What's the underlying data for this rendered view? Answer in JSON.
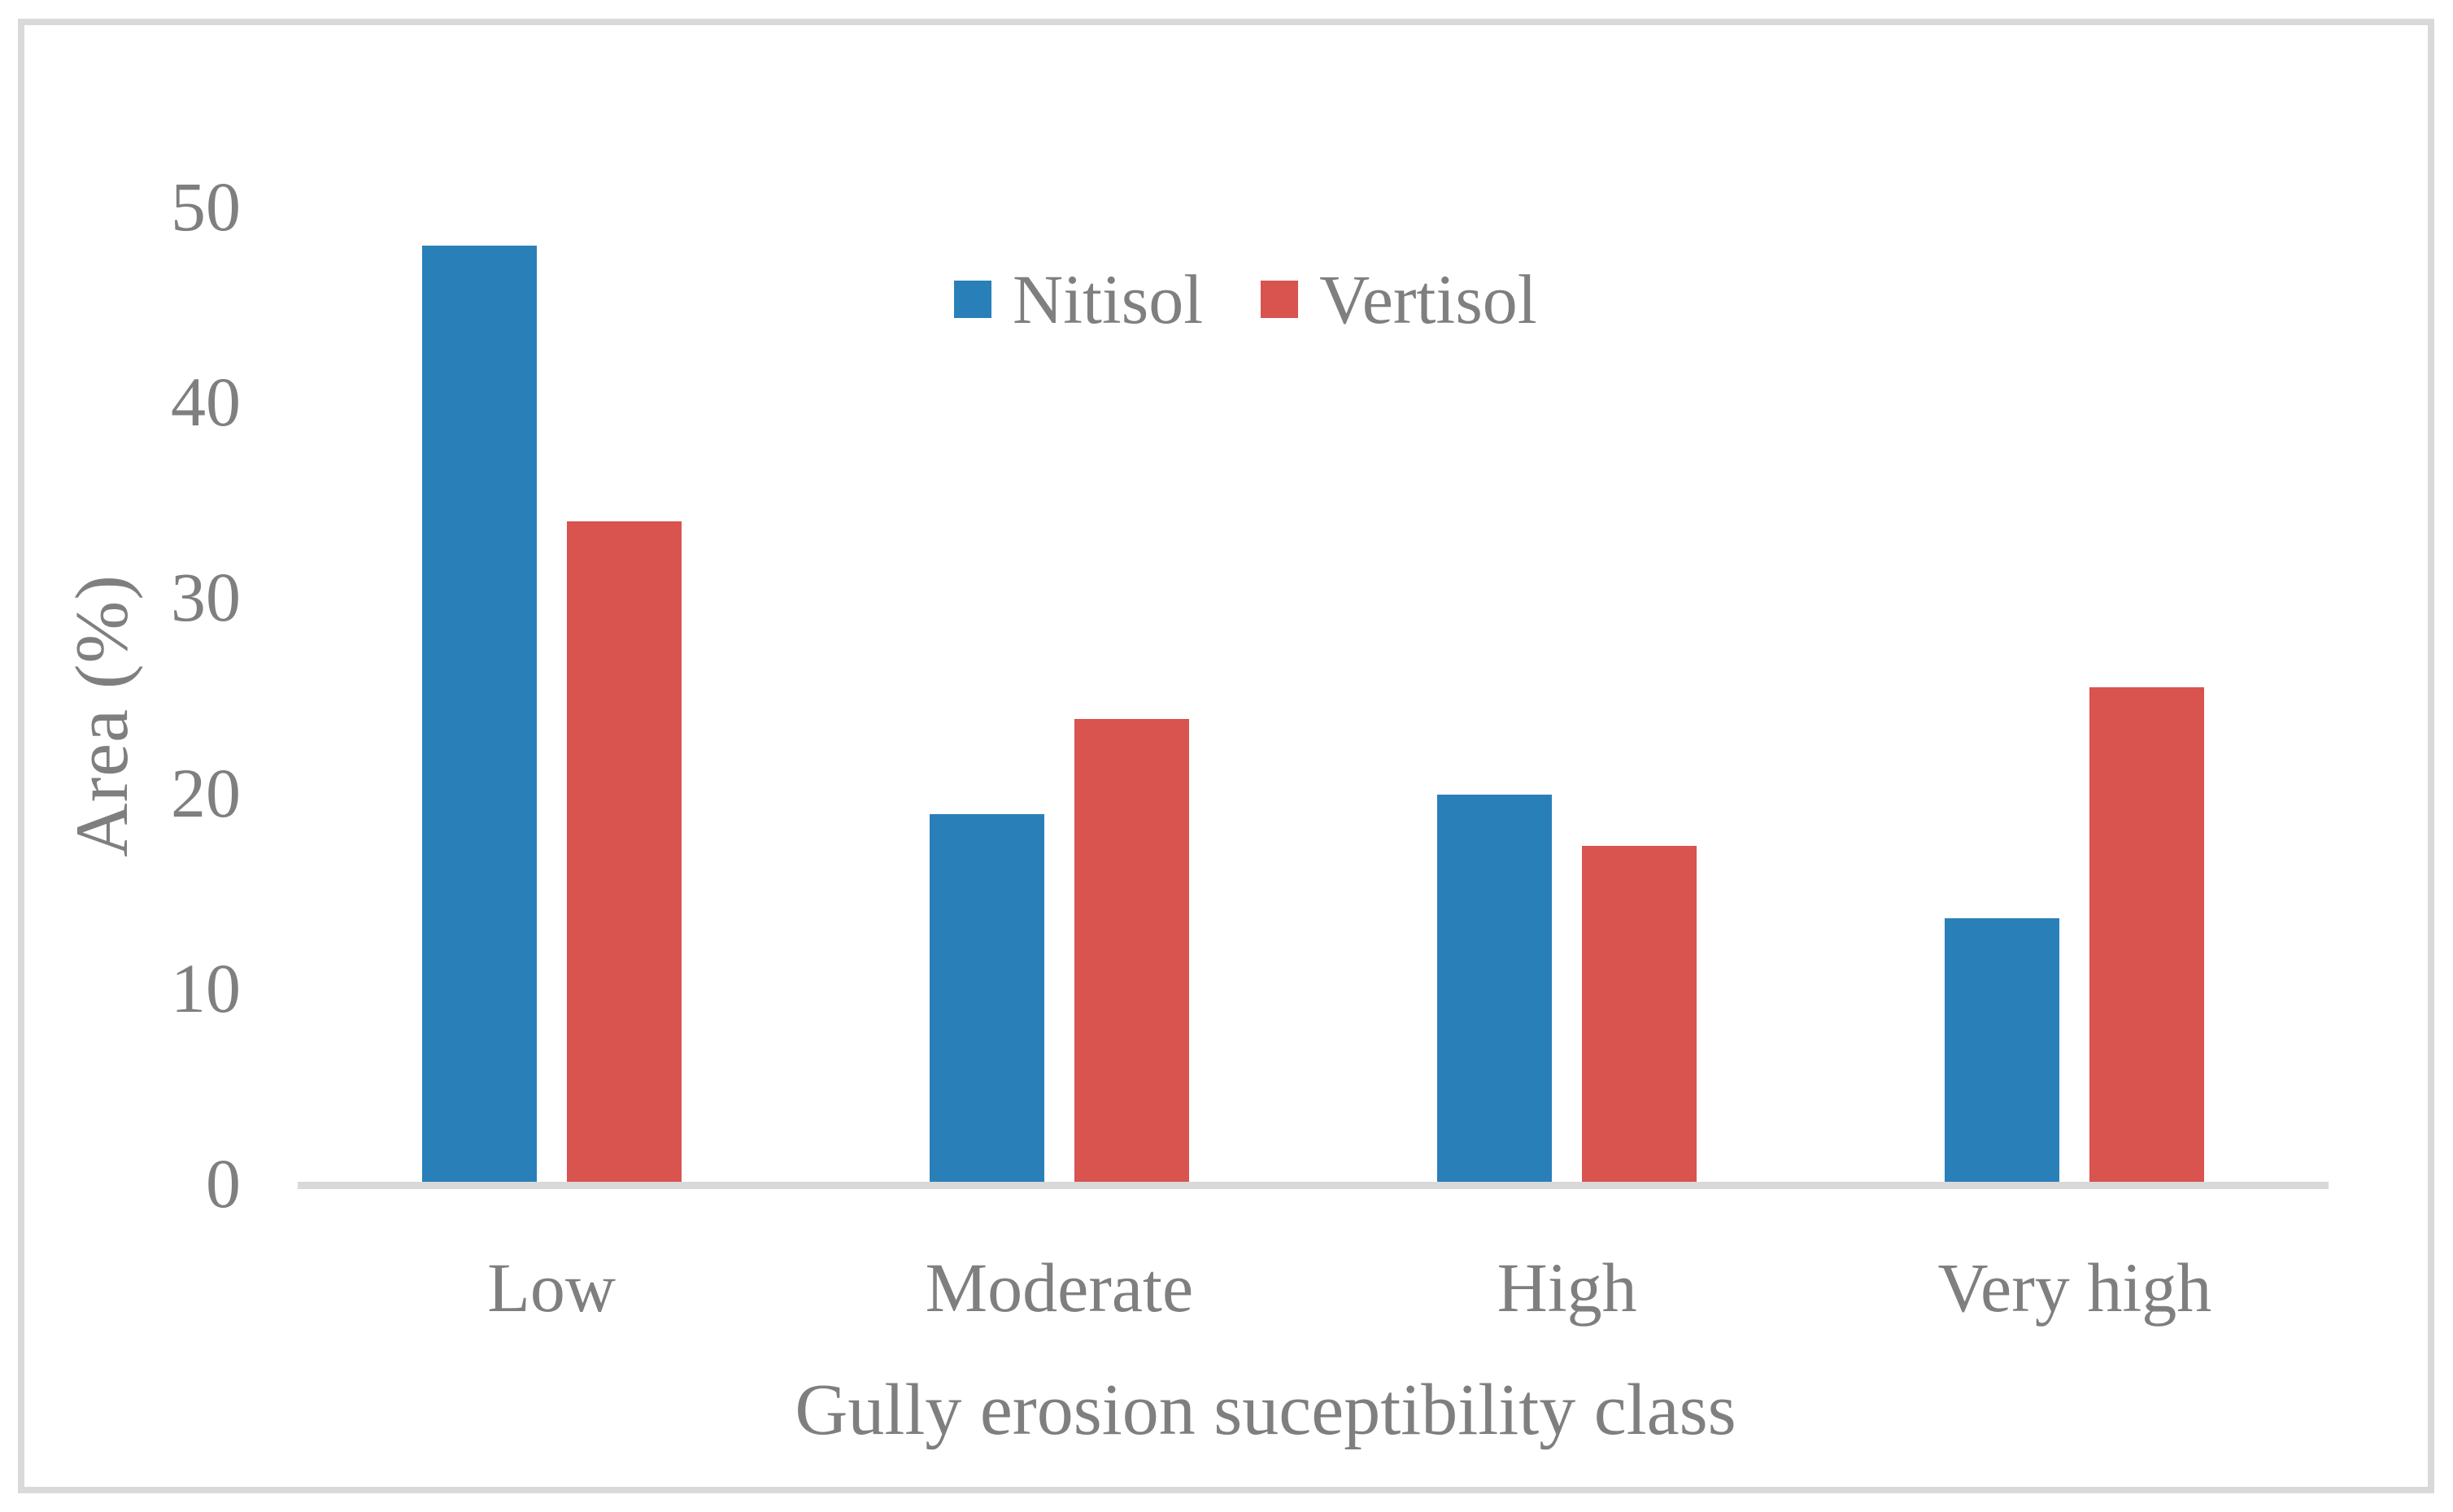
{
  "chart_data": {
    "type": "bar",
    "title": "",
    "categories": [
      "Low",
      "Moderate",
      "High",
      "Very high"
    ],
    "series": [
      {
        "name": "Nitisol",
        "color": "#2980b9",
        "values": [
          47.9,
          18.8,
          19.8,
          13.5
        ]
      },
      {
        "name": "Vertisol",
        "color": "#d9534f",
        "values": [
          33.8,
          23.7,
          17.2,
          25.3
        ]
      }
    ],
    "xlabel": "Gully erosion suceptibility class",
    "ylabel": "Area (%)",
    "ylim": [
      0,
      50
    ],
    "yticks": [
      0,
      10,
      20,
      30,
      40,
      50
    ],
    "grid": false,
    "legend_position": "top-center"
  },
  "colors": {
    "text": "#7f7f7f",
    "axis_line": "#d9d9d9",
    "frame_border": "#d9d9d9",
    "background": "#ffffff"
  }
}
